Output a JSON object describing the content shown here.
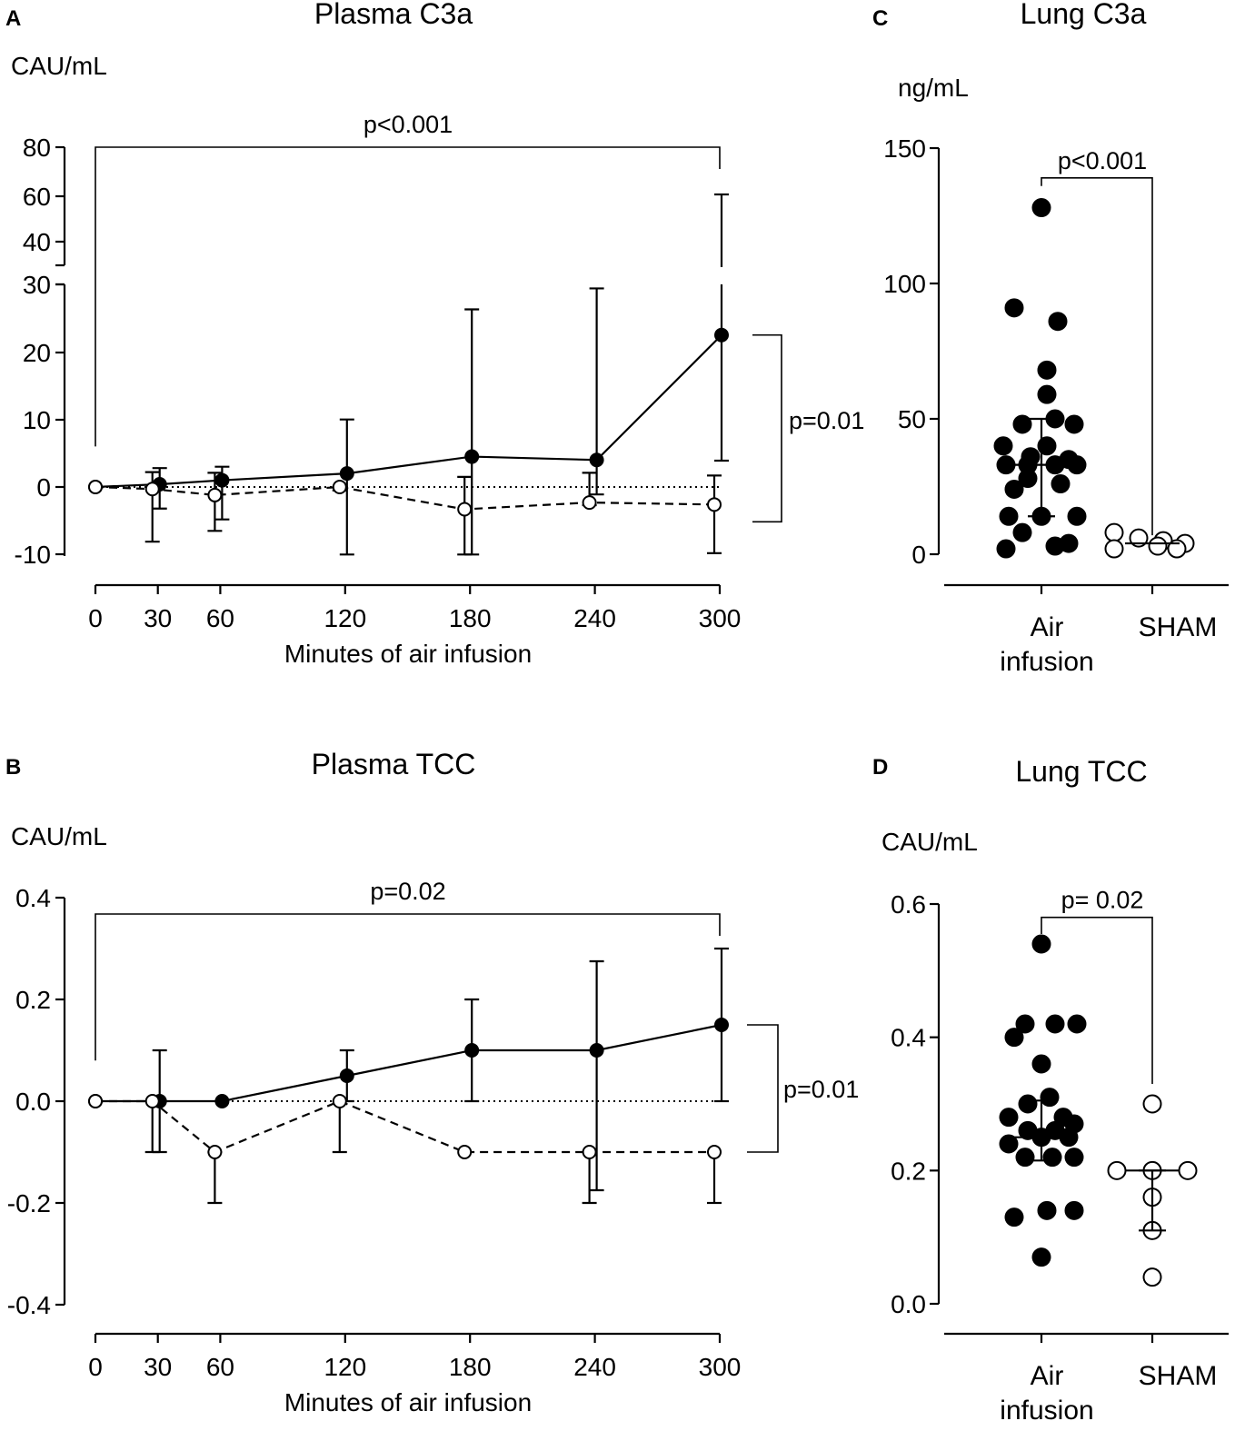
{
  "colors": {
    "ink": "#000000",
    "paper": "#ffffff"
  },
  "chart_data": [
    {
      "panel": "A",
      "type": "line",
      "title": "Plasma C3a",
      "ylabel": "CAU/mL",
      "xlabel": "Minutes of air infusion",
      "x": [
        0,
        30,
        60,
        120,
        180,
        240,
        300
      ],
      "xticks": [
        "0",
        "30",
        "60",
        "120",
        "180",
        "240",
        "300"
      ],
      "ylim": [
        -10,
        80
      ],
      "axis_break": [
        30,
        35
      ],
      "yticks": [
        "80",
        "60",
        "40",
        "30",
        "20",
        "10",
        "0",
        "-10"
      ],
      "series": [
        {
          "name": "Air infusion",
          "marker": "filled",
          "line": "solid",
          "values": [
            0,
            0.4,
            1,
            2,
            4.5,
            4,
            22.5
          ],
          "err_upper": [
            0,
            2.8,
            3,
            10,
            26.3,
            29.4,
            62
          ],
          "err_lower": [
            0,
            -3.2,
            -4.8,
            -10,
            -10,
            -1.1,
            3.9
          ]
        },
        {
          "name": "SHAM",
          "marker": "open",
          "line": "dashed",
          "values": [
            0,
            -0.3,
            -1.2,
            0,
            -3.3,
            -2.3,
            -2.6
          ],
          "err_upper": [
            0,
            2.2,
            2.1,
            0,
            1.5,
            2.1,
            1.7
          ],
          "err_lower": [
            0,
            -8.1,
            -6.5,
            -0.5,
            -10,
            -2.7,
            -9.8
          ]
        }
      ],
      "annotations": [
        {
          "text": "p<0.001",
          "type": "top-bracket",
          "from_x": 0,
          "to_x": 300,
          "left_y": 6,
          "right_y": 47
        },
        {
          "text": "p=0.01",
          "type": "side-bracket",
          "from_y": 22.5,
          "to_y": -2.6
        }
      ]
    },
    {
      "panel": "B",
      "type": "line",
      "title": "Plasma TCC",
      "ylabel": "CAU/mL",
      "xlabel": "Minutes of air infusion",
      "x": [
        0,
        30,
        60,
        120,
        180,
        240,
        300
      ],
      "xticks": [
        "0",
        "30",
        "60",
        "120",
        "180",
        "240",
        "300"
      ],
      "ylim": [
        -0.4,
        0.4
      ],
      "yticks": [
        "0.4",
        "0.2",
        "0.0",
        "-0.2",
        "-0.4"
      ],
      "series": [
        {
          "name": "Air infusion",
          "marker": "filled",
          "line": "solid",
          "values": [
            0,
            0,
            0,
            0.05,
            0.1,
            0.1,
            0.15
          ],
          "err_upper": [
            0,
            0.1,
            0,
            0.1,
            0.2,
            0.275,
            0.3
          ],
          "err_lower": [
            0,
            -0.1,
            0,
            0,
            0,
            -0.175,
            0
          ]
        },
        {
          "name": "SHAM",
          "marker": "open",
          "line": "dashed",
          "values": [
            0,
            0,
            -0.1,
            0,
            -0.1,
            -0.1,
            -0.1
          ],
          "err_upper": [
            0,
            0,
            -0.1,
            0,
            -0.1,
            -0.1,
            -0.1
          ],
          "err_lower": [
            0,
            -0.1,
            -0.2,
            -0.1,
            -0.1,
            -0.2,
            -0.2
          ]
        }
      ],
      "annotations": [
        {
          "text": "p=0.02",
          "type": "top-bracket",
          "from_x": 0,
          "to_x": 300,
          "left_y": 0.08,
          "right_y": 0.34
        },
        {
          "text": "p=0.01",
          "type": "side-bracket",
          "from_y": 0.15,
          "to_y": -0.1
        }
      ]
    },
    {
      "panel": "C",
      "type": "scatter",
      "title": "Lung C3a",
      "ylabel": "ng/mL",
      "categories": [
        "Air\ninfusion",
        "SHAM"
      ],
      "ylim": [
        0,
        150
      ],
      "yticks": [
        "150",
        "100",
        "50",
        "0"
      ],
      "groups": [
        {
          "name": "Air infusion",
          "marker": "filled",
          "median": 33,
          "iqr": [
            14,
            50
          ],
          "points": [
            [
              0,
              128
            ],
            [
              -0.1,
              91
            ],
            [
              0.06,
              86
            ],
            [
              0.02,
              68
            ],
            [
              0.02,
              59
            ],
            [
              -0.07,
              48
            ],
            [
              0.05,
              50
            ],
            [
              0.12,
              48
            ],
            [
              -0.14,
              40
            ],
            [
              0.02,
              40
            ],
            [
              -0.04,
              36
            ],
            [
              0.1,
              35
            ],
            [
              -0.13,
              33
            ],
            [
              -0.05,
              33
            ],
            [
              0.05,
              33
            ],
            [
              0.13,
              33
            ],
            [
              -0.1,
              24
            ],
            [
              -0.05,
              28
            ],
            [
              0.07,
              26
            ],
            [
              -0.12,
              14
            ],
            [
              0,
              14
            ],
            [
              0.13,
              14
            ],
            [
              -0.07,
              8
            ],
            [
              -0.13,
              2
            ],
            [
              0.05,
              3
            ],
            [
              0.1,
              4
            ]
          ]
        },
        {
          "name": "SHAM",
          "marker": "open",
          "median": 4,
          "points": [
            [
              -0.14,
              8
            ],
            [
              -0.05,
              6
            ],
            [
              0.04,
              5
            ],
            [
              0.12,
              4
            ],
            [
              -0.14,
              2
            ],
            [
              0.02,
              3
            ],
            [
              0.09,
              2
            ]
          ]
        }
      ],
      "annotations": [
        {
          "text": "p<0.001",
          "type": "bracket",
          "left_y": 139,
          "right_y": 139,
          "left_drop": 136,
          "right_drop": 7
        }
      ]
    },
    {
      "panel": "D",
      "type": "scatter",
      "title": "Lung TCC",
      "ylabel": "CAU/mL",
      "categories": [
        "Air\ninfusion",
        "SHAM"
      ],
      "ylim": [
        0,
        0.6
      ],
      "yticks": [
        "0.6",
        "0.4",
        "0.2",
        "0.0"
      ],
      "groups": [
        {
          "name": "Air infusion",
          "marker": "filled",
          "median": 0.25,
          "iqr": [
            0.215,
            0.305
          ],
          "points": [
            [
              0,
              0.54
            ],
            [
              -0.06,
              0.42
            ],
            [
              0.05,
              0.42
            ],
            [
              0.13,
              0.42
            ],
            [
              -0.1,
              0.4
            ],
            [
              0,
              0.36
            ],
            [
              -0.05,
              0.3
            ],
            [
              0.03,
              0.31
            ],
            [
              -0.12,
              0.28
            ],
            [
              0.08,
              0.28
            ],
            [
              -0.05,
              0.26
            ],
            [
              0.05,
              0.26
            ],
            [
              0.12,
              0.27
            ],
            [
              -0.12,
              0.24
            ],
            [
              0,
              0.25
            ],
            [
              0.1,
              0.25
            ],
            [
              -0.06,
              0.22
            ],
            [
              0.04,
              0.22
            ],
            [
              0.12,
              0.22
            ],
            [
              -0.1,
              0.13
            ],
            [
              0.02,
              0.14
            ],
            [
              0.12,
              0.14
            ],
            [
              0,
              0.07
            ]
          ]
        },
        {
          "name": "SHAM",
          "marker": "open",
          "median": 0.2,
          "iqr": [
            0.11,
            0.2
          ],
          "points": [
            [
              0,
              0.3
            ],
            [
              -0.13,
              0.2
            ],
            [
              0,
              0.2
            ],
            [
              0.13,
              0.2
            ],
            [
              0,
              0.16
            ],
            [
              0,
              0.11
            ],
            [
              0,
              0.04
            ]
          ]
        }
      ],
      "annotations": [
        {
          "text": "p= 0.02",
          "type": "bracket",
          "left_y": 0.58,
          "right_y": 0.58,
          "left_drop": 0.555,
          "right_drop": 0.33
        }
      ]
    }
  ]
}
